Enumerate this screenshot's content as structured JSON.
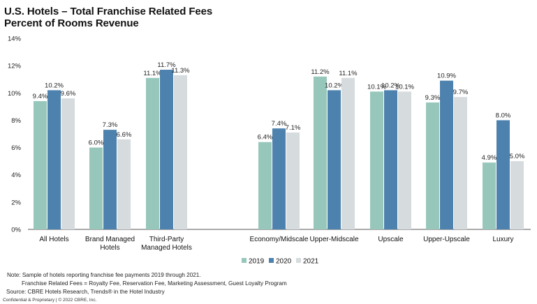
{
  "header": {
    "title": "U.S. Hotels – Total Franchise Related Fees",
    "subtitle": "Percent of Rooms Revenue"
  },
  "notes": {
    "line1": "Note:  Sample of hotels reporting franchise fee payments 2019 through 2021.",
    "line2": "Franchise Related Fees = Royalty Fee, Reservation Fee, Marketing Assessment, Guest Loyalty Program",
    "source": "Source: CBRE Hotels Research, Trends® in the Hotel Industry"
  },
  "footer": "Confidential & Proprietary | © 2022 CBRE, Inc.",
  "colors": {
    "2019": "#97c7bb",
    "2020": "#4e82ae",
    "2021": "#d6dbde",
    "axis": "#555555"
  },
  "chart_data": {
    "type": "bar",
    "title": "U.S. Hotels – Total Franchise Related Fees",
    "subtitle": "Percent of Rooms Revenue",
    "categories": [
      [
        "All Hotels"
      ],
      [
        "Brand Managed",
        "Hotels"
      ],
      [
        "Third-Party",
        "Managed Hotels"
      ],
      [
        "Economy/Midscale"
      ],
      [
        "Upper-Midscale"
      ],
      [
        "Upscale"
      ],
      [
        "Upper-Upscale"
      ],
      [
        "Luxury"
      ]
    ],
    "series": [
      {
        "name": "2019",
        "values": [
          9.4,
          6.0,
          11.1,
          6.4,
          11.2,
          10.1,
          9.3,
          4.9
        ],
        "labels": [
          "9.4%",
          "6.0%",
          "11.1%",
          "6.4%",
          "11.2%",
          "10.1%",
          "9.3%",
          "4.9%"
        ]
      },
      {
        "name": "2020",
        "values": [
          10.2,
          7.3,
          11.7,
          7.4,
          10.2,
          10.2,
          10.9,
          8.0
        ],
        "labels": [
          "10.2%",
          "7.3%",
          "11.7%",
          "7.4%",
          "10.2%",
          "10.2%",
          "10.9%",
          "8.0%"
        ]
      },
      {
        "name": "2021",
        "values": [
          9.6,
          6.6,
          11.3,
          7.1,
          11.1,
          10.1,
          9.7,
          5.0
        ],
        "labels": [
          "9.6%",
          "6.6%",
          "11.3%",
          "7.1%",
          "11.1%",
          "10.1%",
          "9.7%",
          "5.0%"
        ]
      }
    ],
    "yticks": [
      "0%",
      "2%",
      "4%",
      "6%",
      "8%",
      "10%",
      "12%",
      "14%"
    ],
    "ylim": [
      0,
      14
    ],
    "grid": false,
    "legend": "bottom-center"
  }
}
